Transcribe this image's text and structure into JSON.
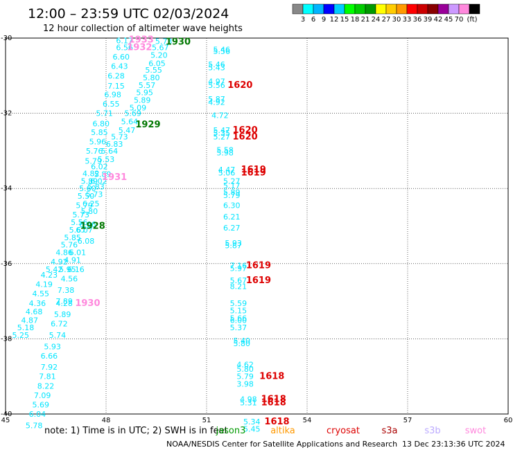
{
  "header": {
    "title": "12:00 – 23:59 UTC 02/03/2024",
    "subtitle": "12 hour collection of altimeter wave heights"
  },
  "scale": {
    "colors": [
      "#888888",
      "#00ffff",
      "#00b4ff",
      "#0000ff",
      "#00ccff",
      "#00ff00",
      "#00cc00",
      "#009900",
      "#ffff00",
      "#ffcc00",
      "#ff9900",
      "#ff0000",
      "#cc0000",
      "#880000",
      "#990099",
      "#cc99ff",
      "#ff88dd",
      "#000000"
    ],
    "labels": [
      "3",
      "6",
      "9",
      "12",
      "15",
      "18",
      "21",
      "24",
      "27",
      "30",
      "33",
      "36",
      "39",
      "42",
      "45",
      "70",
      "(ft)"
    ]
  },
  "chart_data": {
    "type": "scatter",
    "title": "12:00 – 23:59 UTC 02/03/2024",
    "subtitle": "12 hour collection of altimeter wave heights",
    "xlim": [
      45,
      60
    ],
    "ylim": [
      -40,
      -30
    ],
    "x_ticks": [
      "45",
      "48",
      "51",
      "54",
      "57",
      "60"
    ],
    "y_ticks": [
      "-30",
      "-32",
      "-34",
      "-36",
      "-38",
      "-40"
    ],
    "grid": true,
    "points": [
      {
        "lon": 48.55,
        "lat": -30.06,
        "v": "6.17"
      },
      {
        "lon": 49.72,
        "lat": -30.08,
        "v": "5.73"
      },
      {
        "lon": 48.55,
        "lat": -30.25,
        "v": "6.56"
      },
      {
        "lon": 49.62,
        "lat": -30.25,
        "v": "5.67"
      },
      {
        "lon": 48.45,
        "lat": -30.5,
        "v": "6.60"
      },
      {
        "lon": 49.58,
        "lat": -30.45,
        "v": "5.20"
      },
      {
        "lon": 48.4,
        "lat": -30.75,
        "v": "6.43"
      },
      {
        "lon": 49.52,
        "lat": -30.67,
        "v": "6.05"
      },
      {
        "lon": 48.3,
        "lat": -31.0,
        "v": "6.28"
      },
      {
        "lon": 49.42,
        "lat": -30.85,
        "v": "5.55"
      },
      {
        "lon": 48.3,
        "lat": -31.27,
        "v": "7.15"
      },
      {
        "lon": 49.35,
        "lat": -31.05,
        "v": "5.80"
      },
      {
        "lon": 48.2,
        "lat": -31.5,
        "v": "6.98"
      },
      {
        "lon": 49.22,
        "lat": -31.25,
        "v": "5.57"
      },
      {
        "lon": 49.15,
        "lat": -31.45,
        "v": "5.95"
      },
      {
        "lon": 48.15,
        "lat": -31.75,
        "v": "6.55"
      },
      {
        "lon": 49.08,
        "lat": -31.65,
        "v": "5.89"
      },
      {
        "lon": 48.95,
        "lat": -31.85,
        "v": "5.09"
      },
      {
        "lon": 47.95,
        "lat": -32.0,
        "v": "5.71"
      },
      {
        "lon": 48.8,
        "lat": -32.0,
        "v": "5.69"
      },
      {
        "lon": 47.85,
        "lat": -32.27,
        "v": "6.80"
      },
      {
        "lon": 48.7,
        "lat": -32.22,
        "v": "5.64"
      },
      {
        "lon": 48.62,
        "lat": -32.45,
        "v": "5.47"
      },
      {
        "lon": 47.8,
        "lat": -32.5,
        "v": "5.85"
      },
      {
        "lon": 48.4,
        "lat": -32.62,
        "v": "5.73"
      },
      {
        "lon": 47.75,
        "lat": -32.75,
        "v": "5.96"
      },
      {
        "lon": 48.25,
        "lat": -32.82,
        "v": "6.83"
      },
      {
        "lon": 47.65,
        "lat": -33.0,
        "v": "5.76"
      },
      {
        "lon": 48.1,
        "lat": -33.0,
        "v": "5.64"
      },
      {
        "lon": 47.62,
        "lat": -33.27,
        "v": "5.79"
      },
      {
        "lon": 48.0,
        "lat": -33.22,
        "v": "5.53"
      },
      {
        "lon": 47.8,
        "lat": -33.42,
        "v": "6.02"
      },
      {
        "lon": 47.55,
        "lat": -33.6,
        "v": "4.82"
      },
      {
        "lon": 47.9,
        "lat": -33.62,
        "v": "5.89"
      },
      {
        "lon": 47.5,
        "lat": -33.8,
        "v": "5.89"
      },
      {
        "lon": 47.78,
        "lat": -33.8,
        "v": "6.02"
      },
      {
        "lon": 47.45,
        "lat": -34.0,
        "v": "5.60"
      },
      {
        "lon": 47.7,
        "lat": -33.95,
        "v": "5.83"
      },
      {
        "lon": 47.4,
        "lat": -34.2,
        "v": "5.50"
      },
      {
        "lon": 47.65,
        "lat": -34.15,
        "v": "5.73"
      },
      {
        "lon": 47.35,
        "lat": -34.45,
        "v": "5.79"
      },
      {
        "lon": 47.55,
        "lat": -34.4,
        "v": "6.25"
      },
      {
        "lon": 47.25,
        "lat": -34.7,
        "v": "5.73"
      },
      {
        "lon": 47.5,
        "lat": -34.6,
        "v": "5.80"
      },
      {
        "lon": 47.2,
        "lat": -34.9,
        "v": "5.56"
      },
      {
        "lon": 47.45,
        "lat": -34.95,
        "v": "6.66"
      },
      {
        "lon": 47.15,
        "lat": -35.1,
        "v": "5.67"
      },
      {
        "lon": 47.35,
        "lat": -35.1,
        "v": "6.07"
      },
      {
        "lon": 47.0,
        "lat": -35.3,
        "v": "5.85"
      },
      {
        "lon": 47.4,
        "lat": -35.4,
        "v": "6.08"
      },
      {
        "lon": 46.9,
        "lat": -35.5,
        "v": "5.76"
      },
      {
        "lon": 46.75,
        "lat": -35.7,
        "v": "4.86"
      },
      {
        "lon": 47.15,
        "lat": -35.7,
        "v": "6.01"
      },
      {
        "lon": 46.6,
        "lat": -35.95,
        "v": "4.92"
      },
      {
        "lon": 47.0,
        "lat": -35.9,
        "v": "4.91"
      },
      {
        "lon": 46.45,
        "lat": -36.15,
        "v": "5.42"
      },
      {
        "lon": 46.85,
        "lat": -36.15,
        "v": "5.95"
      },
      {
        "lon": 47.1,
        "lat": -36.15,
        "v": "6.16"
      },
      {
        "lon": 46.3,
        "lat": -36.3,
        "v": "4.23"
      },
      {
        "lon": 46.15,
        "lat": -36.55,
        "v": "4.19"
      },
      {
        "lon": 46.9,
        "lat": -36.4,
        "v": "4.56"
      },
      {
        "lon": 46.05,
        "lat": -36.8,
        "v": "4.55"
      },
      {
        "lon": 46.8,
        "lat": -36.7,
        "v": "7.38"
      },
      {
        "lon": 45.95,
        "lat": -37.05,
        "v": "4.36"
      },
      {
        "lon": 46.75,
        "lat": -37.0,
        "v": "7.89"
      },
      {
        "lon": 46.75,
        "lat": -37.05,
        "v": "4.28"
      },
      {
        "lon": 45.85,
        "lat": -37.27,
        "v": "4.68"
      },
      {
        "lon": 45.72,
        "lat": -37.5,
        "v": "4.87"
      },
      {
        "lon": 46.7,
        "lat": -37.35,
        "v": "5.89"
      },
      {
        "lon": 45.6,
        "lat": -37.7,
        "v": "5.18"
      },
      {
        "lon": 46.6,
        "lat": -37.6,
        "v": "6.72"
      },
      {
        "lon": 45.45,
        "lat": -37.9,
        "v": "5.25"
      },
      {
        "lon": 46.55,
        "lat": -37.9,
        "v": "5.74"
      },
      {
        "lon": 46.4,
        "lat": -38.2,
        "v": "5.93"
      },
      {
        "lon": 46.3,
        "lat": -38.45,
        "v": "6.66"
      },
      {
        "lon": 46.3,
        "lat": -38.75,
        "v": "7.92"
      },
      {
        "lon": 46.25,
        "lat": -39.0,
        "v": "7.81"
      },
      {
        "lon": 46.2,
        "lat": -39.25,
        "v": "8.22"
      },
      {
        "lon": 46.1,
        "lat": -39.5,
        "v": "7.09"
      },
      {
        "lon": 46.05,
        "lat": -39.75,
        "v": "5.69"
      },
      {
        "lon": 45.95,
        "lat": -40.0,
        "v": "6.04"
      },
      {
        "lon": 45.85,
        "lat": -40.3,
        "v": "5.78"
      },
      {
        "lon": 51.45,
        "lat": -30.3,
        "v": "5.46"
      },
      {
        "lon": 51.45,
        "lat": -30.35,
        "v": "5.56"
      },
      {
        "lon": 51.3,
        "lat": -30.7,
        "v": "5.46"
      },
      {
        "lon": 51.3,
        "lat": -30.78,
        "v": "5.43"
      },
      {
        "lon": 51.3,
        "lat": -31.15,
        "v": "4.97"
      },
      {
        "lon": 51.3,
        "lat": -31.25,
        "v": "5.56"
      },
      {
        "lon": 51.3,
        "lat": -31.62,
        "v": "5.87"
      },
      {
        "lon": 51.3,
        "lat": -31.7,
        "v": "4.92"
      },
      {
        "lon": 51.4,
        "lat": -32.05,
        "v": "4.72"
      },
      {
        "lon": 51.45,
        "lat": -32.45,
        "v": "5.47"
      },
      {
        "lon": 51.45,
        "lat": -32.52,
        "v": "5.35"
      },
      {
        "lon": 51.45,
        "lat": -32.62,
        "v": "5.27"
      },
      {
        "lon": 51.55,
        "lat": -32.97,
        "v": "5.58"
      },
      {
        "lon": 51.55,
        "lat": -33.05,
        "v": "5.98"
      },
      {
        "lon": 51.6,
        "lat": -33.5,
        "v": "4.47"
      },
      {
        "lon": 51.6,
        "lat": -33.58,
        "v": "5.06"
      },
      {
        "lon": 51.75,
        "lat": -33.8,
        "v": "5.27"
      },
      {
        "lon": 51.75,
        "lat": -33.92,
        "v": "5.17"
      },
      {
        "lon": 51.75,
        "lat": -34.1,
        "v": "5.89"
      },
      {
        "lon": 51.75,
        "lat": -34.18,
        "v": "5.79"
      },
      {
        "lon": 51.75,
        "lat": -34.45,
        "v": "6.30"
      },
      {
        "lon": 51.75,
        "lat": -34.75,
        "v": "6.21"
      },
      {
        "lon": 51.75,
        "lat": -35.05,
        "v": "6.27"
      },
      {
        "lon": 51.8,
        "lat": -35.45,
        "v": "5.93"
      },
      {
        "lon": 51.8,
        "lat": -35.52,
        "v": "5.87"
      },
      {
        "lon": 51.95,
        "lat": -36.05,
        "v": "7.16"
      },
      {
        "lon": 51.95,
        "lat": -36.12,
        "v": "5.97"
      },
      {
        "lon": 51.95,
        "lat": -36.45,
        "v": "5.67"
      },
      {
        "lon": 51.95,
        "lat": -36.6,
        "v": "8.21"
      },
      {
        "lon": 51.95,
        "lat": -37.05,
        "v": "5.59"
      },
      {
        "lon": 51.95,
        "lat": -37.25,
        "v": "5.15"
      },
      {
        "lon": 51.95,
        "lat": -37.45,
        "v": "5.66"
      },
      {
        "lon": 51.95,
        "lat": -37.5,
        "v": "6.00"
      },
      {
        "lon": 51.95,
        "lat": -37.7,
        "v": "5.37"
      },
      {
        "lon": 52.05,
        "lat": -38.05,
        "v": "5.40"
      },
      {
        "lon": 52.05,
        "lat": -38.12,
        "v": "5.80"
      },
      {
        "lon": 52.15,
        "lat": -38.68,
        "v": "4.62"
      },
      {
        "lon": 52.15,
        "lat": -38.8,
        "v": "5.80"
      },
      {
        "lon": 52.15,
        "lat": -39.0,
        "v": "5.79"
      },
      {
        "lon": 52.15,
        "lat": -39.2,
        "v": "3.98"
      },
      {
        "lon": 52.25,
        "lat": -39.6,
        "v": "4.98"
      },
      {
        "lon": 52.25,
        "lat": -39.7,
        "v": "5.31"
      },
      {
        "lon": 52.35,
        "lat": -40.2,
        "v": "5.34"
      },
      {
        "lon": 52.35,
        "lat": -40.4,
        "v": "5.45"
      }
    ],
    "passes": [
      {
        "lon": 49.05,
        "lat": -30.05,
        "label": "1933",
        "sat": "swot"
      },
      {
        "lon": 50.15,
        "lat": -30.1,
        "label": "1930",
        "sat": "jason3"
      },
      {
        "lon": 49.0,
        "lat": -30.25,
        "label": "1932",
        "sat": "swot"
      },
      {
        "lon": 49.25,
        "lat": -32.3,
        "label": "1929",
        "sat": "jason3"
      },
      {
        "lon": 48.25,
        "lat": -33.7,
        "label": "1931",
        "sat": "swot"
      },
      {
        "lon": 47.6,
        "lat": -35.0,
        "label": "1928",
        "sat": "jason3"
      },
      {
        "lon": 47.45,
        "lat": -37.05,
        "label": "1930",
        "sat": "swot"
      },
      {
        "lon": 52.0,
        "lat": -31.25,
        "label": "1620",
        "sat": "cryosat"
      },
      {
        "lon": 52.15,
        "lat": -32.45,
        "label": "1620",
        "sat": "cryosat"
      },
      {
        "lon": 52.15,
        "lat": -32.62,
        "label": "1620",
        "sat": "cryosat"
      },
      {
        "lon": 52.4,
        "lat": -33.5,
        "label": "1619",
        "sat": "cryosat"
      },
      {
        "lon": 52.4,
        "lat": -33.58,
        "label": "1619",
        "sat": "cryosat"
      },
      {
        "lon": 52.55,
        "lat": -36.05,
        "label": "1619",
        "sat": "cryosat"
      },
      {
        "lon": 52.55,
        "lat": -36.45,
        "label": "1619",
        "sat": "cryosat"
      },
      {
        "lon": 52.95,
        "lat": -39.0,
        "label": "1618",
        "sat": "cryosat"
      },
      {
        "lon": 53.0,
        "lat": -39.6,
        "label": "1618",
        "sat": "cryosat"
      },
      {
        "lon": 53.0,
        "lat": -39.7,
        "label": "1618",
        "sat": "cryosat"
      },
      {
        "lon": 53.1,
        "lat": -40.2,
        "label": "1618",
        "sat": "cryosat"
      }
    ]
  },
  "colors": {
    "value": "#00e5ff",
    "jason3": "#007700",
    "swot": "#ff88dd",
    "cryosat": "#dd0000",
    "grid": "#000000"
  },
  "footer": {
    "note": "note:  1) Time is in UTC;  2) SWH is in feet",
    "sat_labels": [
      {
        "key": "jason3",
        "text": "jason3",
        "color": "#009900"
      },
      {
        "key": "altika",
        "text": "altika",
        "color": "#ff9900"
      },
      {
        "key": "cryosat",
        "text": "cryosat",
        "color": "#dd0000"
      },
      {
        "key": "s3a",
        "text": "s3a",
        "color": "#aa0000"
      },
      {
        "key": "s3b",
        "text": "s3b",
        "color": "#bbaaff"
      },
      {
        "key": "swot",
        "text": "swot",
        "color": "#ff88dd"
      }
    ],
    "credit": "NOAA/NESDIS Center for Satellite Applications and Research",
    "timestamp": "13 Dec 23:13:36 UTC 2024"
  }
}
